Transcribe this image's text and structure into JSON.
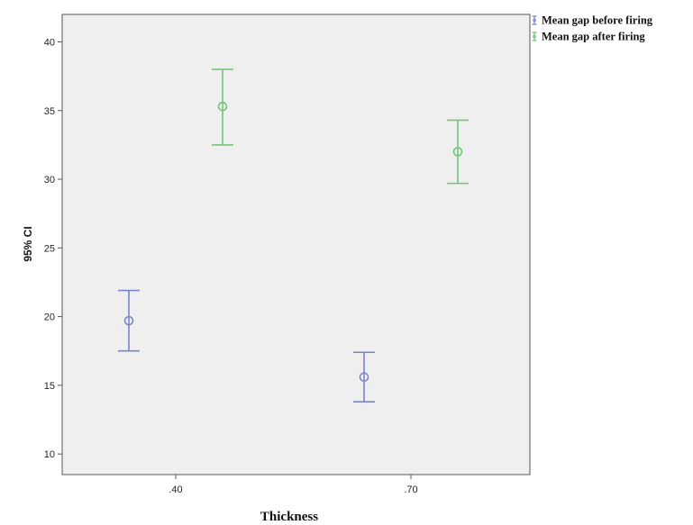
{
  "chart_data": {
    "type": "errorbar",
    "xlabel": "Thickness",
    "ylabel": "95% CI",
    "categories": [
      ".40",
      ".70"
    ],
    "ylim": [
      8.5,
      42
    ],
    "yticks": [
      10,
      15,
      20,
      25,
      30,
      35,
      40
    ],
    "ytick_labels": [
      "10",
      "15",
      "20",
      "25",
      "30",
      "35",
      "40"
    ],
    "grid": false,
    "legend_position": "top-right-outside",
    "series": [
      {
        "name": "Mean gap before firing",
        "color": "#7b86c8",
        "points": [
          {
            "category": ".40",
            "mean": 19.7,
            "lower": 17.5,
            "upper": 21.9
          },
          {
            "category": ".70",
            "mean": 15.6,
            "lower": 13.8,
            "upper": 17.4
          }
        ]
      },
      {
        "name": "Mean gap after firing",
        "color": "#74c47a",
        "points": [
          {
            "category": ".40",
            "mean": 35.3,
            "lower": 32.5,
            "upper": 38.0
          },
          {
            "category": ".70",
            "mean": 32.0,
            "lower": 29.7,
            "upper": 34.3
          }
        ]
      }
    ]
  }
}
